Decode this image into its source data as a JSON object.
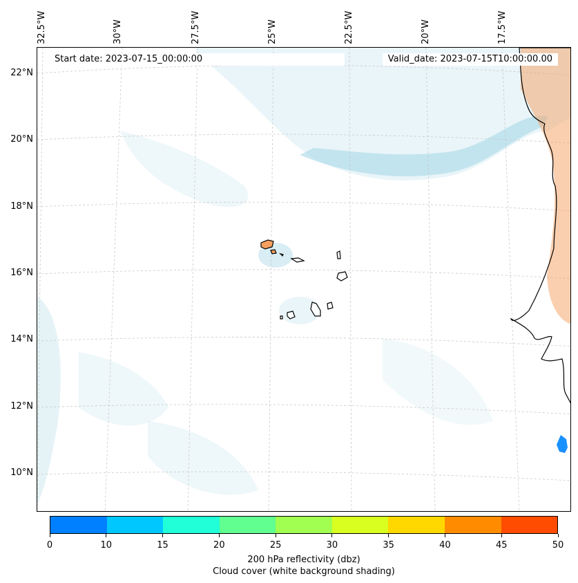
{
  "map": {
    "title_left": "Start date: 2023-07-15_00:00:00",
    "title_right": "Valid_date: 2023-07-15T10:00:00.00",
    "lon_labels": [
      "32.5°W",
      "30°W",
      "27.5°W",
      "25°W",
      "22.5°W",
      "20°W",
      "17.5°W"
    ],
    "lat_labels": [
      "22°N",
      "20°N",
      "18°N",
      "16°N",
      "14°N",
      "12°N",
      "10°N"
    ],
    "colors": {
      "cloud": "#a8d8e6",
      "coast": "#000000",
      "grid": "#c8c8c8"
    }
  },
  "colorbar": {
    "ticks": [
      "0",
      "10",
      "15",
      "20",
      "25",
      "30",
      "35",
      "40",
      "45",
      "50"
    ],
    "colors": [
      "#0080ff",
      "#00c8ff",
      "#20ffd8",
      "#60ff90",
      "#a0ff50",
      "#d8ff20",
      "#ffd800",
      "#ff8c00",
      "#ff4c00"
    ],
    "label_line1": "200 hPa reflectivity (dbz)",
    "label_line2": "Cloud cover (white background shading)"
  }
}
